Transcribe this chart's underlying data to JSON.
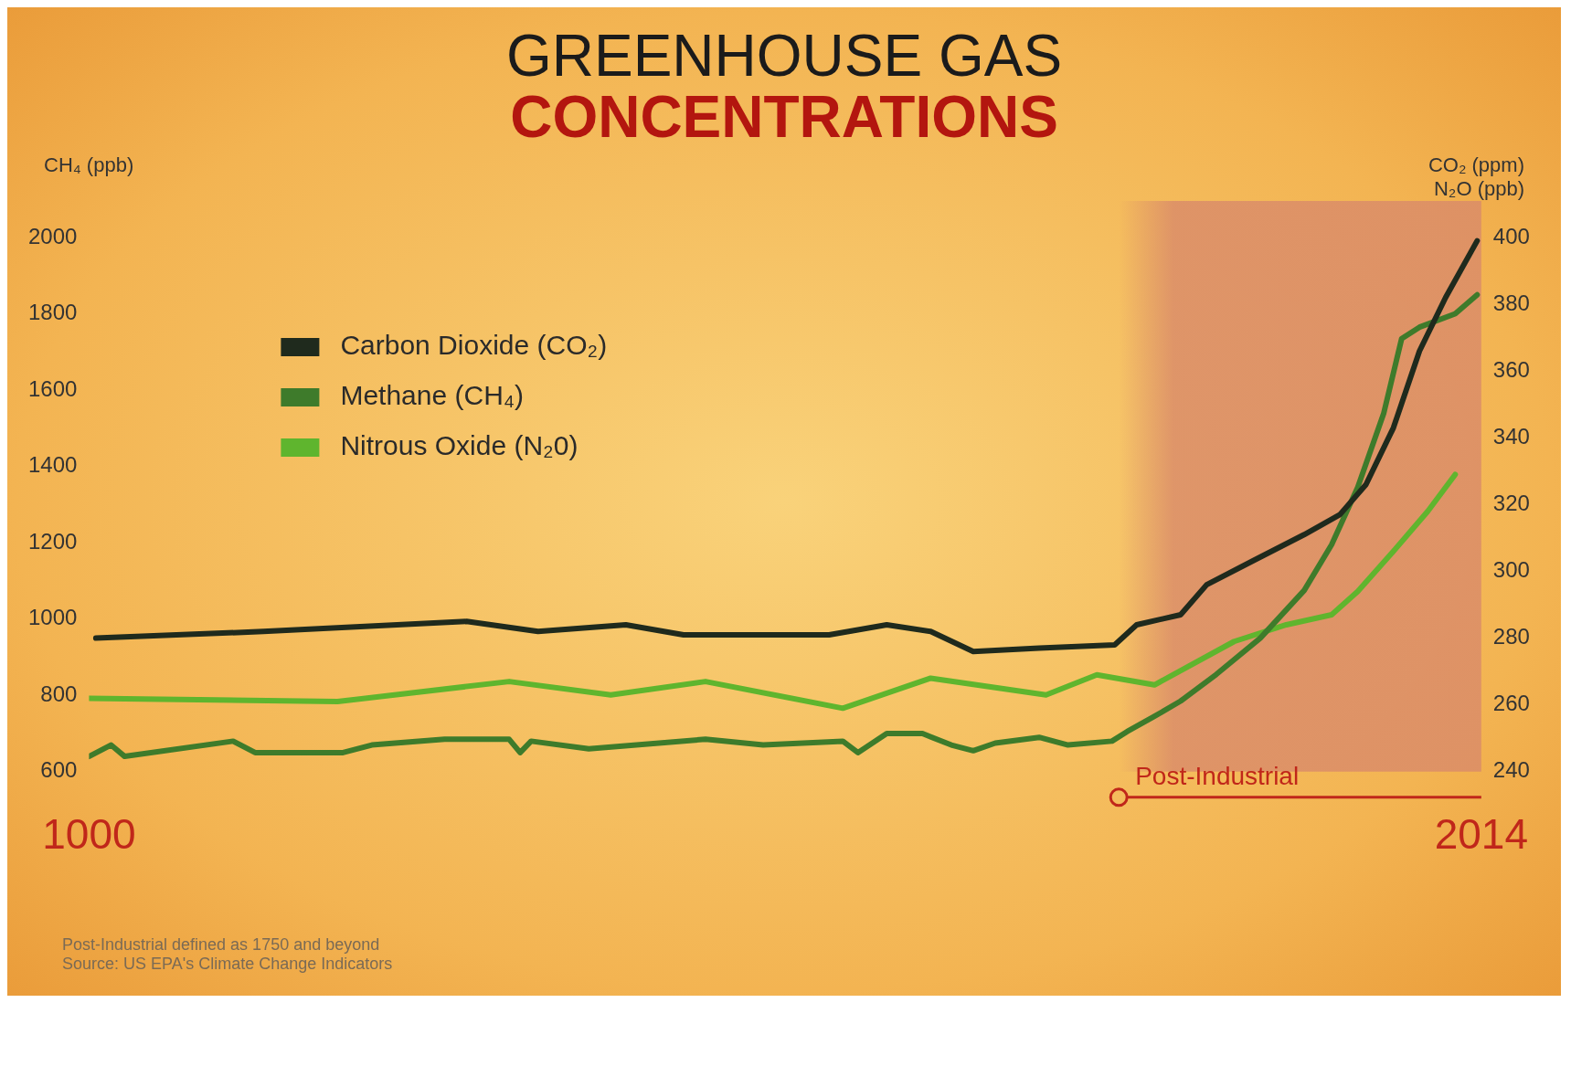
{
  "chart_data": {
    "type": "line",
    "title": "GREENHOUSE GAS",
    "subtitle": "CONCENTRATIONS",
    "ylabel": "CH₄ (ppb)",
    "y2label": "CO₂ (ppm) N₂O (ppb)",
    "xlim": [
      1000,
      2014
    ],
    "xticks": [
      1000,
      2014
    ],
    "ylim": [
      600,
      2000
    ],
    "yticks": [
      600,
      800,
      1000,
      1200,
      1400,
      1600,
      1800,
      2000
    ],
    "y2lim": [
      240,
      400
    ],
    "y2ticks": [
      240,
      260,
      280,
      300,
      320,
      340,
      360,
      380,
      400
    ],
    "legend": "top left",
    "series": [
      {
        "name": "Carbon Dioxide (CO₂)",
        "color": "#1f2a1d",
        "axis": "y2",
        "x": [
          1005,
          1127,
          1275,
          1327,
          1391,
          1433,
          1539,
          1581,
          1613,
          1644,
          1692,
          1747,
          1763,
          1795,
          1814,
          1847,
          1885,
          1911,
          1930,
          1950,
          1969,
          1988,
          2011
        ],
        "values": [
          280,
          282,
          285,
          282,
          284,
          281,
          281,
          284,
          282,
          276,
          277,
          278,
          284,
          287,
          296,
          303,
          311,
          317,
          326,
          343,
          366,
          382,
          399
        ]
      },
      {
        "name": "Methane (CH₄)",
        "color": "#3e7b2b",
        "axis": "y",
        "x": [
          1000,
          1016,
          1026,
          1105,
          1121,
          1185,
          1206,
          1259,
          1306,
          1314,
          1322,
          1364,
          1449,
          1491,
          1549,
          1560,
          1581,
          1607,
          1628,
          1644,
          1660,
          1692,
          1713,
          1745,
          1756,
          1776,
          1795,
          1821,
          1853,
          1885,
          1905,
          1924,
          1943,
          1956,
          1969,
          1995,
          2011
        ],
        "values": [
          640,
          670,
          640,
          680,
          650,
          650,
          670,
          685,
          685,
          650,
          680,
          660,
          685,
          670,
          680,
          650,
          700,
          700,
          670,
          655,
          675,
          690,
          670,
          680,
          705,
          745,
          785,
          855,
          950,
          1075,
          1195,
          1345,
          1540,
          1735,
          1765,
          1800,
          1850
        ]
      },
      {
        "name": "Nitrous Oxide (N₂0)",
        "color": "#5fb52e",
        "axis": "y2",
        "x": [
          1000,
          1181,
          1306,
          1380,
          1449,
          1549,
          1613,
          1697,
          1734,
          1776,
          1834,
          1872,
          1905,
          1924,
          1950,
          1975,
          1995
        ],
        "values": [
          262,
          261,
          267,
          263,
          267,
          259,
          268,
          263,
          269,
          266,
          279,
          284,
          287,
          294,
          306,
          318,
          329
        ]
      }
    ],
    "bands": [
      {
        "axis": "x",
        "from": 1750,
        "to": 2014,
        "label": "Post-Industrial",
        "color": "#d98a6a"
      }
    ],
    "annotations": [
      "Post-Industrial defined as 1750 and beyond",
      "Source: US EPA's Climate Change Indicators"
    ]
  }
}
